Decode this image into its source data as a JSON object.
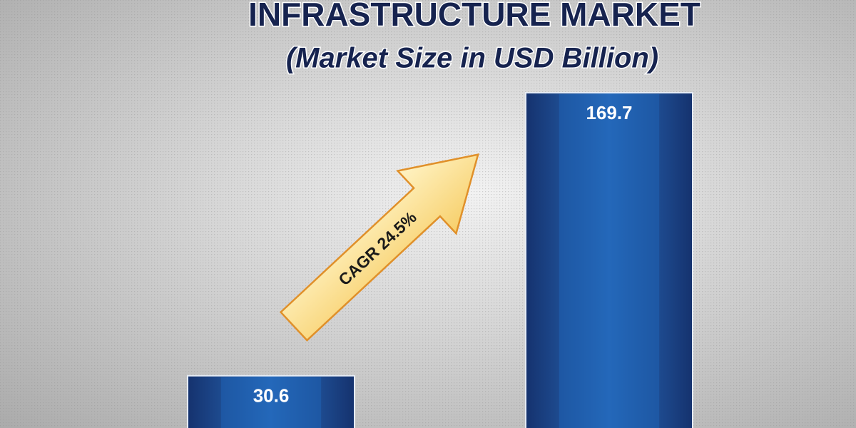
{
  "chart_data": {
    "type": "bar",
    "title": "INFRASTRUCTURE MARKET",
    "subtitle": "(Market Size in USD Billion)",
    "annotation": "CAGR 24.5%",
    "values": [
      30.6,
      169.7
    ],
    "color": "#1f62b4"
  }
}
